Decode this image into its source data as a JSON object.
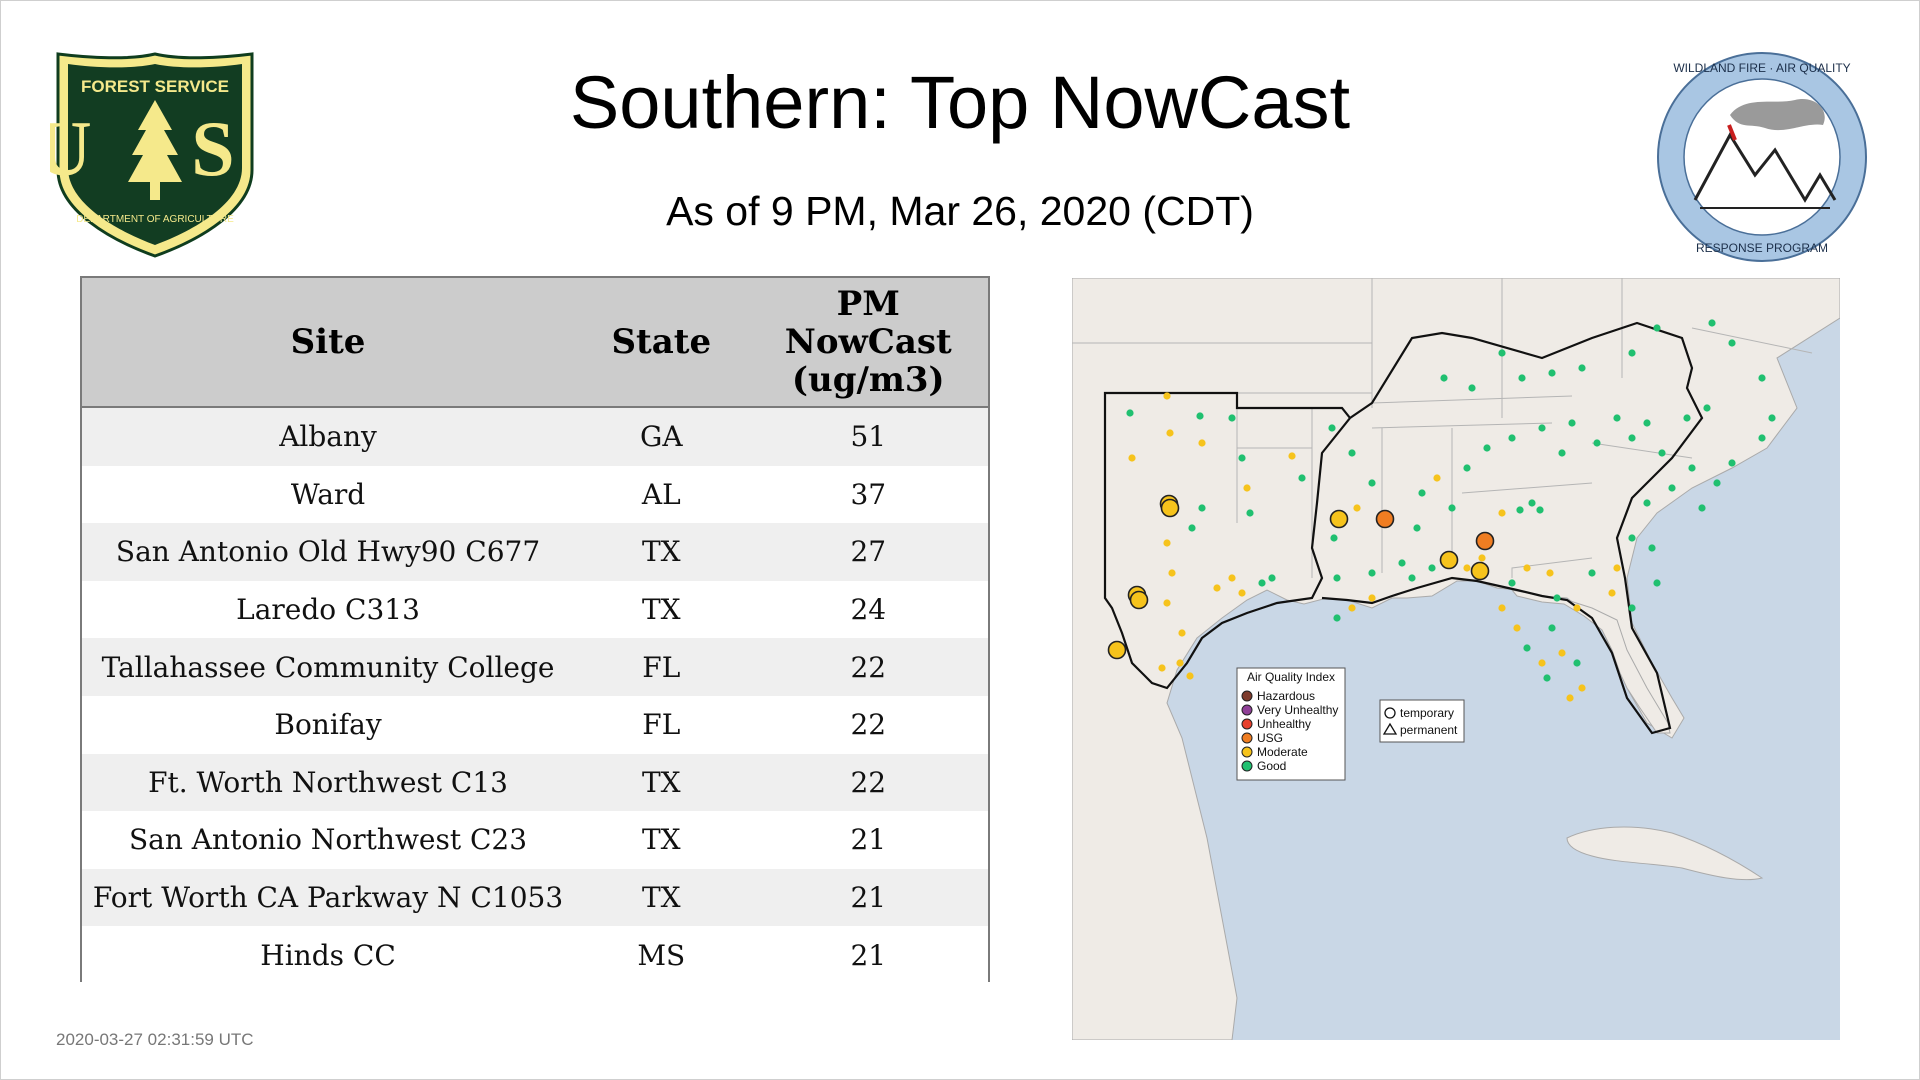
{
  "header": {
    "title": "Southern: Top NowCast",
    "subtitle": "As of  9 PM, Mar 26, 2020 (CDT)"
  },
  "logos": {
    "left": {
      "icon": "forest-service-shield-icon",
      "text_top": "FOREST SERVICE",
      "text_main": "U S",
      "text_bottom": "DEPARTMENT OF AGRICULTURE"
    },
    "right": {
      "icon": "wildland-fire-air-quality-seal-icon",
      "text_top": "WILDLAND FIRE · AIR QUALITY",
      "text_bottom": "RESPONSE PROGRAM"
    }
  },
  "table": {
    "headers": {
      "site": "Site",
      "state": "State",
      "pm_line1": "PM",
      "pm_line2": "NowCast",
      "pm_line3": "(ug/m3)"
    },
    "rows": [
      {
        "site": "Albany",
        "state": "GA",
        "value": "51"
      },
      {
        "site": "Ward",
        "state": "AL",
        "value": "37"
      },
      {
        "site": "San Antonio Old Hwy90 C677",
        "state": "TX",
        "value": "27"
      },
      {
        "site": "Laredo C313",
        "state": "TX",
        "value": "24"
      },
      {
        "site": "Tallahassee Community College",
        "state": "FL",
        "value": "22"
      },
      {
        "site": "Bonifay",
        "state": "FL",
        "value": "22"
      },
      {
        "site": "Ft. Worth Northwest C13",
        "state": "TX",
        "value": "22"
      },
      {
        "site": "San Antonio Northwest C23",
        "state": "TX",
        "value": "21"
      },
      {
        "site": "Fort Worth CA Parkway N C1053",
        "state": "TX",
        "value": "21"
      },
      {
        "site": "Hinds CC",
        "state": "MS",
        "value": "21"
      }
    ]
  },
  "map": {
    "legend_title": "Air Quality Index",
    "legend": [
      {
        "label": "Hazardous",
        "color": "#7e3b2c"
      },
      {
        "label": "Very Unhealthy",
        "color": "#8f3f97"
      },
      {
        "label": "Unhealthy",
        "color": "#e8402c"
      },
      {
        "label": "USG",
        "color": "#ef7d22"
      },
      {
        "label": "Moderate",
        "color": "#f6c31c"
      },
      {
        "label": "Good",
        "color": "#20c070"
      }
    ],
    "shape_legend": [
      {
        "label": "temporary",
        "shape": "circle"
      },
      {
        "label": "permanent",
        "shape": "triangle"
      }
    ],
    "colors": {
      "water": "#c9d7e6",
      "land": "#efebe6",
      "border": "#9c9c9c",
      "region": "#111111"
    }
  },
  "footer": {
    "timestamp": "2020-03-27 02:31:59 UTC"
  }
}
